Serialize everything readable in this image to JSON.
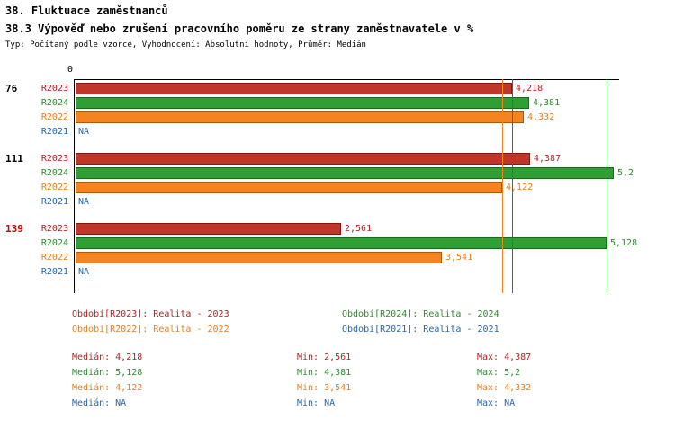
{
  "header": {
    "title1": "38. Fluktuace zaměstnanců",
    "title2": "38.3 Výpověď nebo zrušení pracovního poměru ze strany zaměstnavatele v %",
    "subtitle": "Typ: Počítaný podle vzorce, Vyhodnocení: Absolutní hodnoty, Průměr: Medián"
  },
  "colors": {
    "axis": "#000000",
    "group_highlight": "#cc0000",
    "series": {
      "R2023": {
        "fill": "#c0372a",
        "border": "#7e1a12",
        "text": "#b22222"
      },
      "R2024": {
        "fill": "#2f9e33",
        "border": "#1c671f",
        "text": "#2e8b2e"
      },
      "R2022": {
        "fill": "#f5831f",
        "border": "#a85a10",
        "text": "#e87f1a"
      },
      "R2021": {
        "fill": "#2268ae",
        "border": "#2268ae",
        "text": "#2268ae"
      }
    }
  },
  "chart_data": {
    "type": "bar",
    "orientation": "horizontal",
    "title": "38.3 Výpověď nebo zrušení pracovního poměru ze strany zaměstnavatele v %",
    "xlim": [
      0,
      5.25
    ],
    "grid": false,
    "x_axis": {
      "zero_label": "0"
    },
    "series_order": [
      "R2023",
      "R2024",
      "R2022",
      "R2021"
    ],
    "groups": [
      {
        "label": "76",
        "highlight": false,
        "bars": [
          {
            "series": "R2023",
            "value": 4.218,
            "display": "4,218"
          },
          {
            "series": "R2024",
            "value": 4.381,
            "display": "4,381"
          },
          {
            "series": "R2022",
            "value": 4.332,
            "display": "4,332"
          },
          {
            "series": "R2021",
            "value": null,
            "display": "NA"
          }
        ]
      },
      {
        "label": "111",
        "highlight": false,
        "bars": [
          {
            "series": "R2023",
            "value": 4.387,
            "display": "4,387"
          },
          {
            "series": "R2024",
            "value": 5.2,
            "display": "5,2"
          },
          {
            "series": "R2022",
            "value": 4.122,
            "display": "4,122"
          },
          {
            "series": "R2021",
            "value": null,
            "display": "NA"
          }
        ]
      },
      {
        "label": "139",
        "highlight": true,
        "bars": [
          {
            "series": "R2023",
            "value": 2.561,
            "display": "2,561"
          },
          {
            "series": "R2024",
            "value": 5.128,
            "display": "5,128"
          },
          {
            "series": "R2022",
            "value": 3.541,
            "display": "3,541"
          },
          {
            "series": "R2021",
            "value": null,
            "display": "NA"
          }
        ]
      }
    ],
    "median_lines": [
      {
        "series": "R2022",
        "value": 4.122
      },
      {
        "series": "R2023",
        "value": 4.218
      },
      {
        "series": "R2024",
        "value": 5.128
      }
    ]
  },
  "legend": [
    {
      "series": "R2023",
      "label": "Období[R2023]: Realita - 2023"
    },
    {
      "series": "R2024",
      "label": "Období[R2024]: Realita - 2024"
    },
    {
      "series": "R2022",
      "label": "Období[R2022]: Realita - 2022"
    },
    {
      "series": "R2021",
      "label": "Období[R2021]: Realita - 2021"
    }
  ],
  "stats": [
    {
      "series": "R2023",
      "median": "Medián: 4,218",
      "min": "Min: 2,561",
      "max": "Max: 4,387"
    },
    {
      "series": "R2024",
      "median": "Medián: 5,128",
      "min": "Min: 4,381",
      "max": "Max: 5,2"
    },
    {
      "series": "R2022",
      "median": "Medián: 4,122",
      "min": "Min: 3,541",
      "max": "Max: 4,332"
    },
    {
      "series": "R2021",
      "median": "Medián: NA",
      "min": "Min: NA",
      "max": "Max: NA"
    }
  ]
}
